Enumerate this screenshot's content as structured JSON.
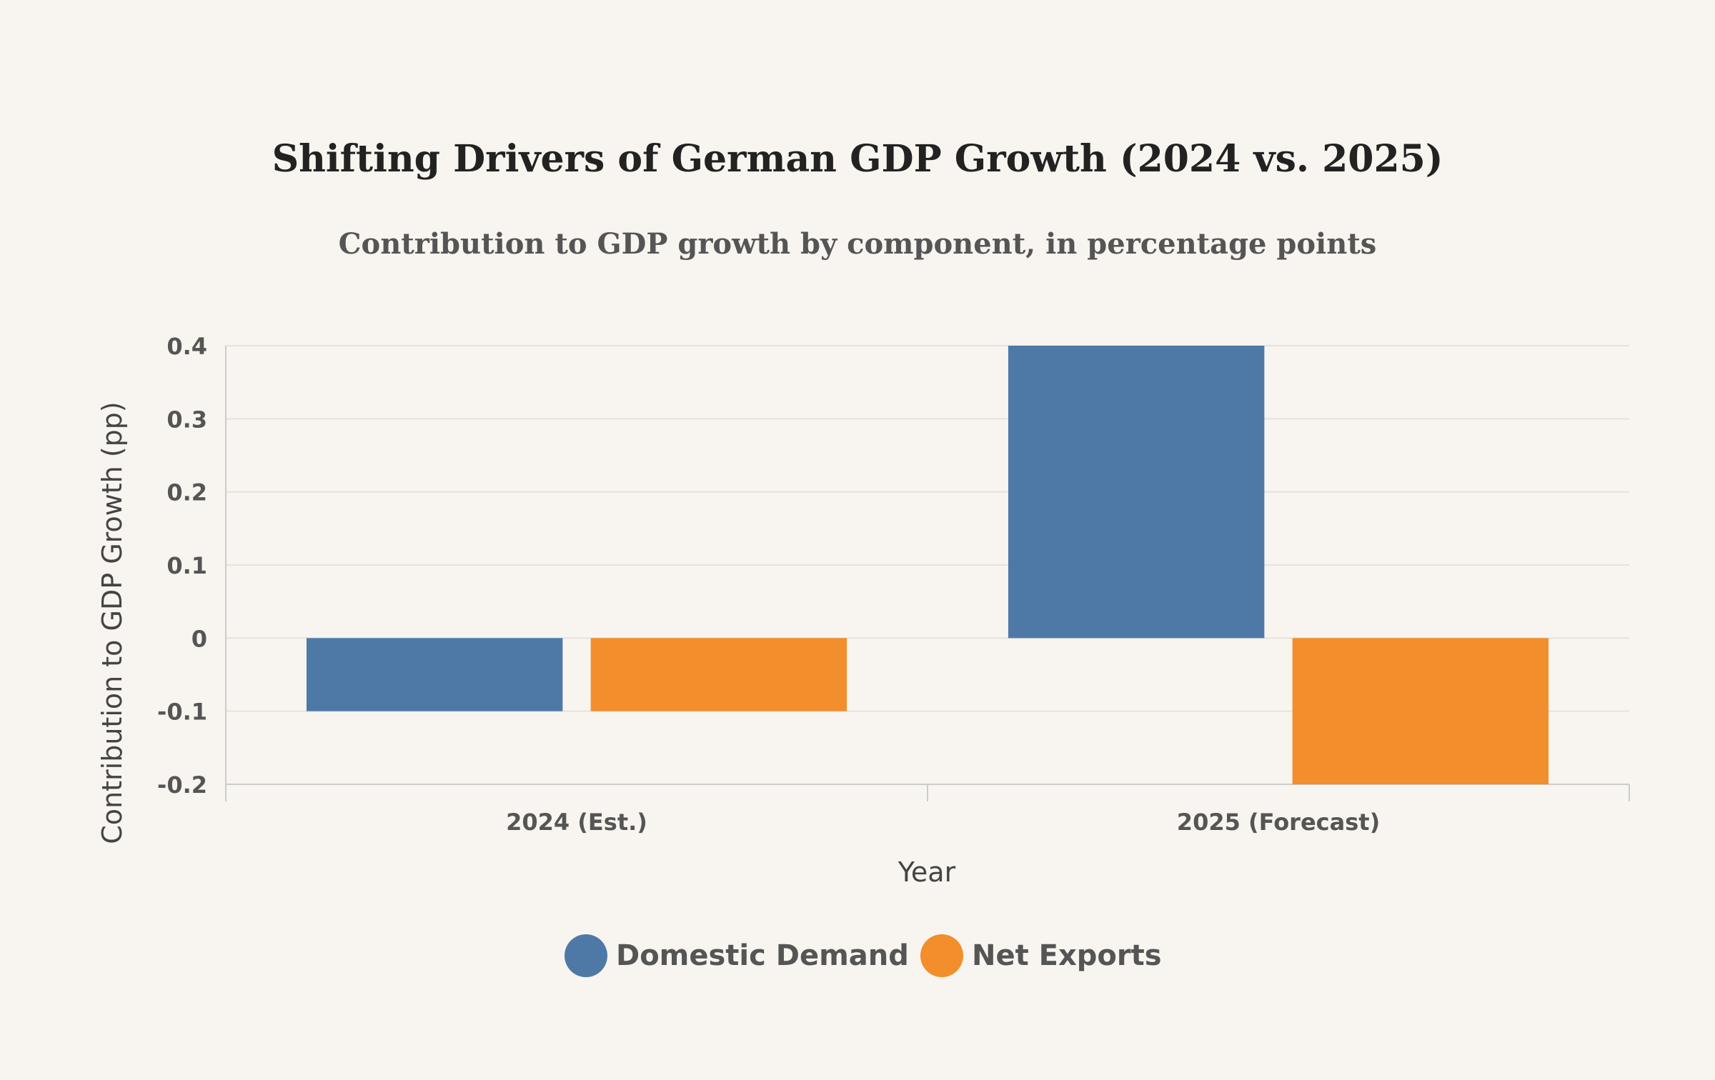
{
  "chart_data": {
    "type": "bar",
    "title": "Shifting Drivers of German GDP Growth (2024 vs. 2025)",
    "subtitle": "Contribution to GDP growth by component, in percentage points",
    "xlabel": "Year",
    "ylabel": "Contribution to GDP Growth (pp)",
    "categories": [
      "2024 (Est.)",
      "2025 (Forecast)"
    ],
    "series": [
      {
        "name": "Domestic Demand",
        "values": [
          -0.1,
          0.4
        ],
        "color": "#4e79a7"
      },
      {
        "name": "Net Exports",
        "values": [
          -0.1,
          -0.2
        ],
        "color": "#f28e2b"
      }
    ],
    "ylim": [
      -0.2,
      0.4
    ],
    "yticks": [
      -0.2,
      -0.1,
      0,
      0.1,
      0.2,
      0.3,
      0.4
    ],
    "ytick_labels": [
      "-0.2",
      "-0.1",
      "0",
      "0.1",
      "0.2",
      "0.3",
      "0.4"
    ],
    "grid": true,
    "legend_position": "bottom-center"
  },
  "colors": {
    "background": "#f8f5f0",
    "grid": "#e6e2dc",
    "axis": "#cccccc"
  }
}
